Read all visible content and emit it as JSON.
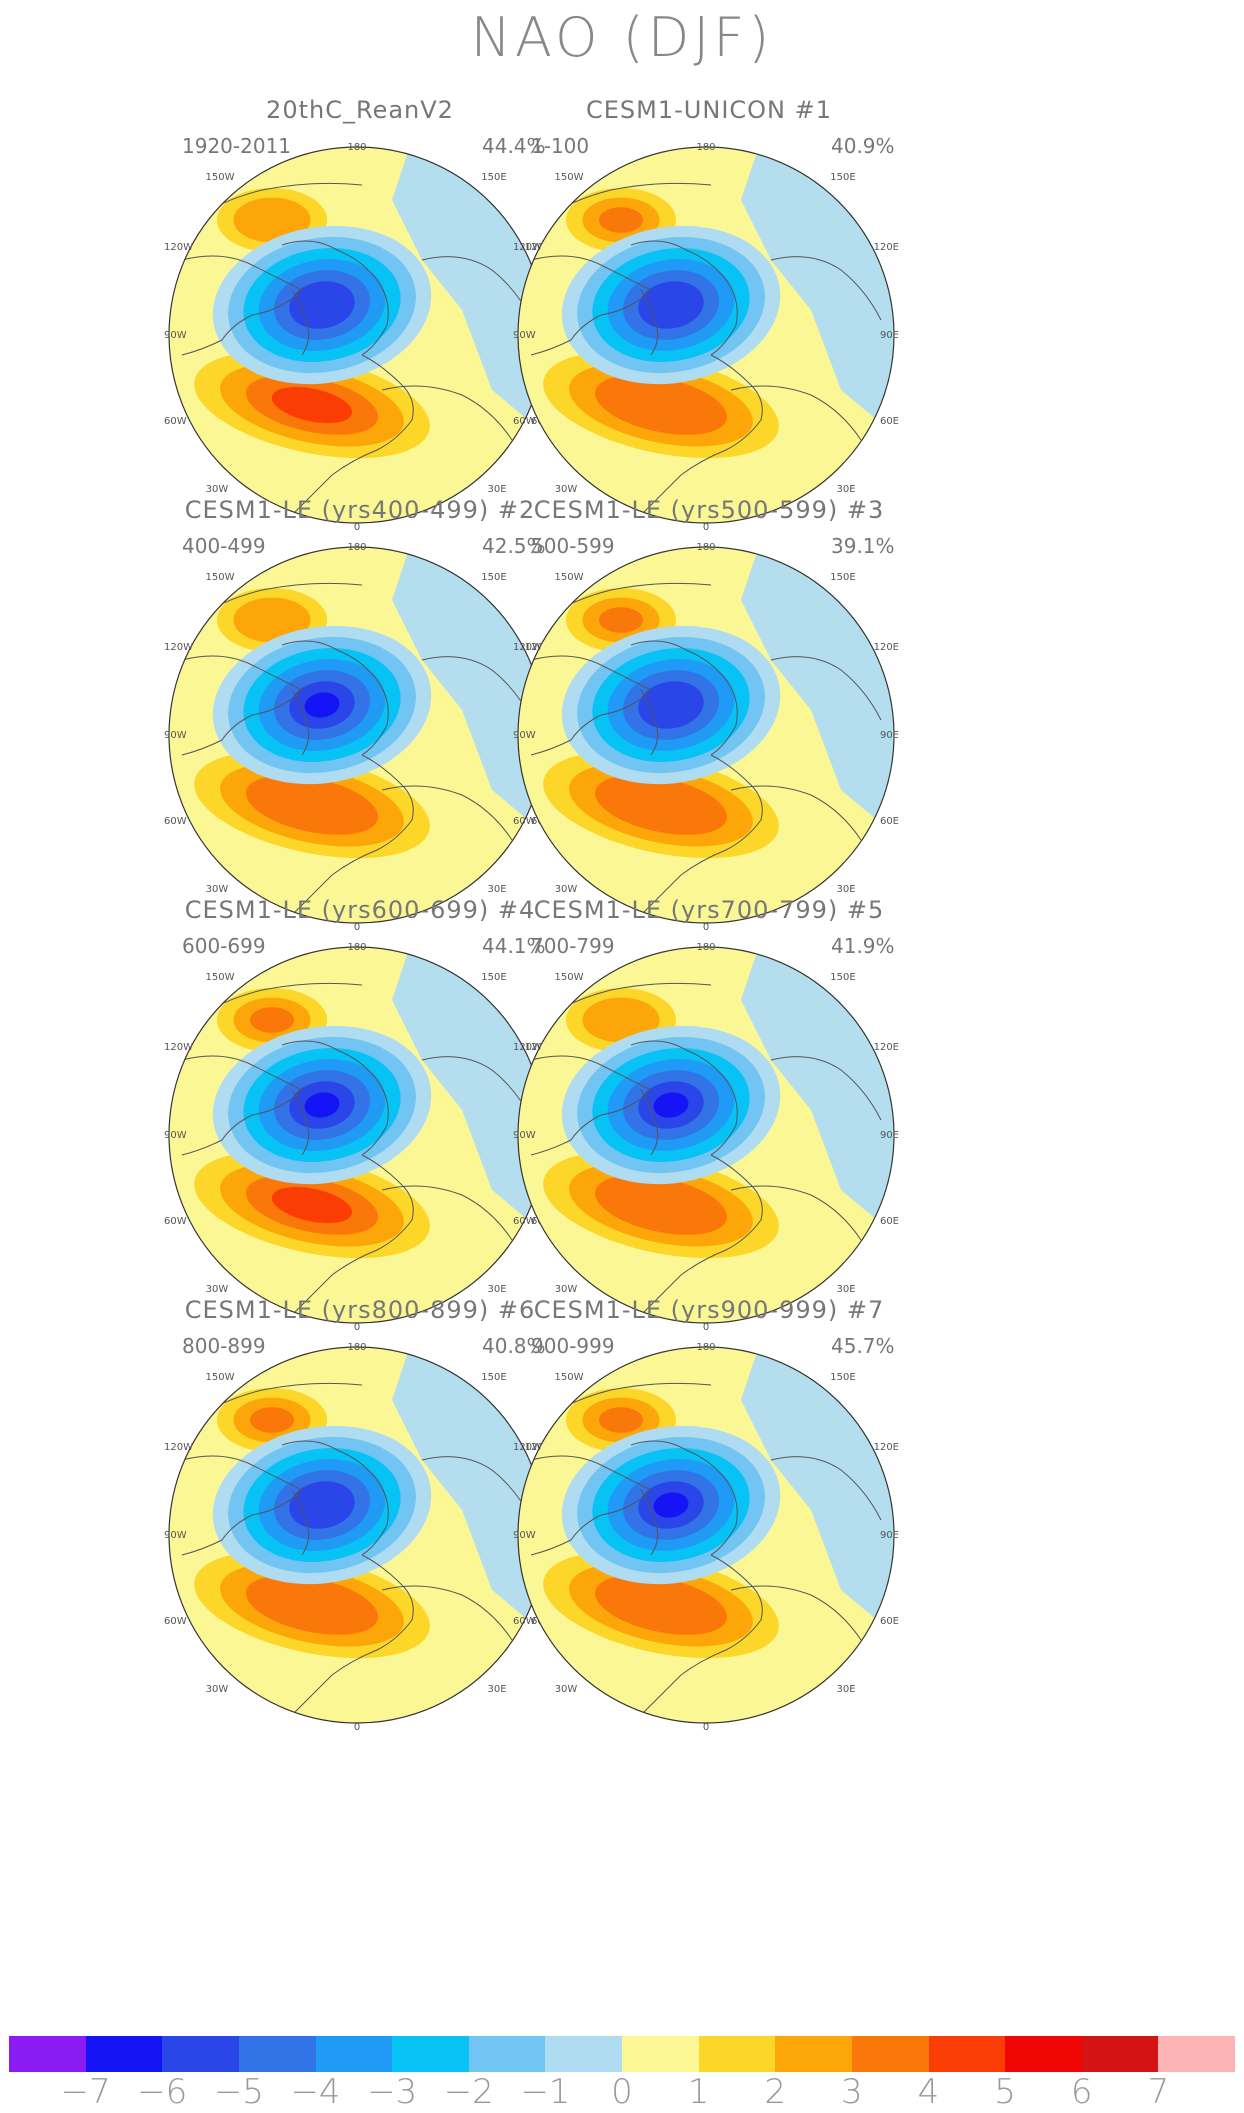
{
  "title": "NAO (DJF)",
  "lon_labels": [
    "180",
    "150W",
    "150E",
    "120W",
    "120E",
    "90W",
    "90E",
    "60W",
    "60E",
    "30W",
    "30E",
    "0"
  ],
  "panels": [
    {
      "title": "20thC_ReanV2",
      "years": "1920-2011",
      "percent": "44.4%",
      "low_strength": 5,
      "high_strength": 4,
      "pac_strength": 2
    },
    {
      "title": "CESM1-UNICON        #1",
      "years": "1-100",
      "percent": "40.9%",
      "low_strength": 5,
      "high_strength": 3,
      "pac_strength": 3
    },
    {
      "title": "CESM1-LE (yrs400-499) #2",
      "years": "400-499",
      "percent": "42.5%",
      "low_strength": 6,
      "high_strength": 3,
      "pac_strength": 2
    },
    {
      "title": "CESM1-LE (yrs500-599) #3",
      "years": "500-599",
      "percent": "39.1%",
      "low_strength": 5,
      "high_strength": 3,
      "pac_strength": 3
    },
    {
      "title": "CESM1-LE (yrs600-699) #4",
      "years": "600-699",
      "percent": "44.1%",
      "low_strength": 6,
      "high_strength": 4,
      "pac_strength": 3
    },
    {
      "title": "CESM1-LE (yrs700-799) #5",
      "years": "700-799",
      "percent": "41.9%",
      "low_strength": 6,
      "high_strength": 3,
      "pac_strength": 2
    },
    {
      "title": "CESM1-LE (yrs800-899) #6",
      "years": "800-899",
      "percent": "40.8%",
      "low_strength": 5,
      "high_strength": 3,
      "pac_strength": 3
    },
    {
      "title": "CESM1-LE (yrs900-999) #7",
      "years": "900-999",
      "percent": "45.7%",
      "low_strength": 6,
      "high_strength": 3,
      "pac_strength": 3
    }
  ],
  "colorbar": {
    "colors": [
      "#8a1bf2",
      "#1414f5",
      "#2a46e8",
      "#3273e8",
      "#1f9af5",
      "#06c2f5",
      "#72c4f2",
      "#b0dcf2",
      "#fcf795",
      "#fcd629",
      "#fca60a",
      "#fa780a",
      "#fa3c05",
      "#f00505",
      "#d41414",
      "#fcb4b4"
    ],
    "labels": [
      "−7",
      "−6",
      "−5",
      "−4",
      "−3",
      "−2",
      "−1",
      "0",
      "1",
      "2",
      "3",
      "4",
      "5",
      "6",
      "7"
    ]
  }
}
